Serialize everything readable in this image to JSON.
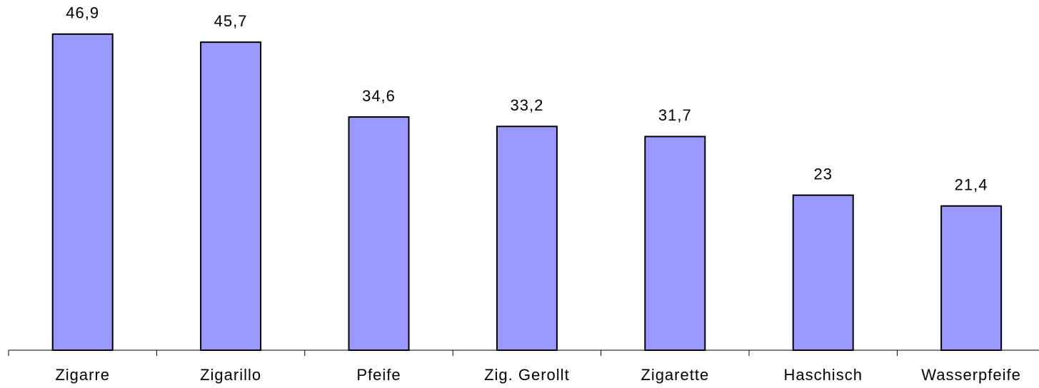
{
  "chart_data": {
    "type": "bar",
    "categories": [
      "Zigarre",
      "Zigarillo",
      "Pfeife",
      "Zig. Gerollt",
      "Zigarette",
      "Haschisch",
      "Wasserpfeife"
    ],
    "values": [
      46.9,
      45.7,
      34.6,
      33.2,
      31.7,
      23,
      21.4
    ],
    "value_labels": [
      "46,9",
      "45,7",
      "34,6",
      "33,2",
      "31,7",
      "23",
      "21,4"
    ],
    "color": "#9999ff"
  }
}
